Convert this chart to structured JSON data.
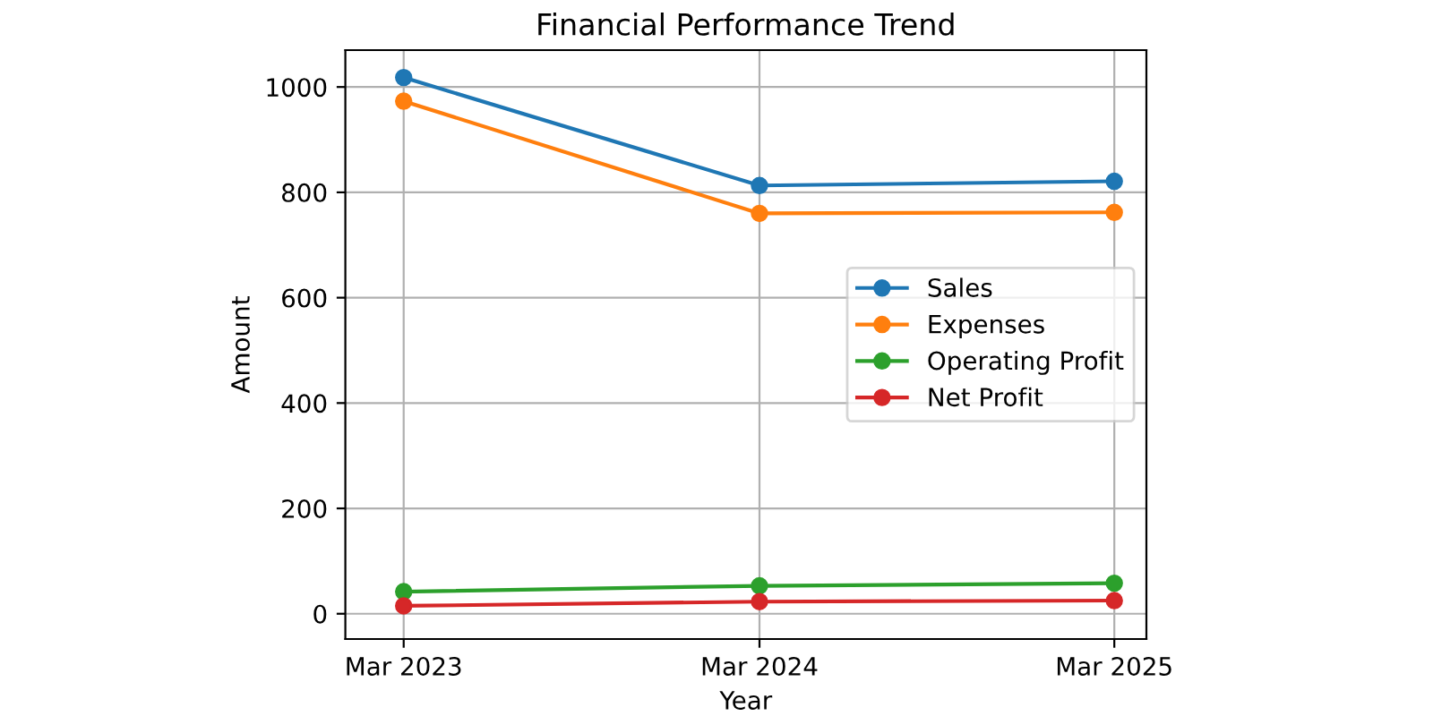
{
  "chart_data": {
    "type": "line",
    "title": "Financial Performance Trend",
    "xlabel": "Year",
    "ylabel": "Amount",
    "x": [
      "2023-03",
      "2024-03",
      "2025-03"
    ],
    "series": [
      {
        "name": "Sales",
        "color": "#1f77b4",
        "values": [
          1018,
          813,
          821
        ]
      },
      {
        "name": "Expenses",
        "color": "#ff7f0e",
        "values": [
          973,
          760,
          762
        ]
      },
      {
        "name": "Operating Profit",
        "color": "#2ca02c",
        "values": [
          42,
          53,
          58
        ]
      },
      {
        "name": "Net Profit",
        "color": "#d62728",
        "values": [
          15,
          23,
          25
        ]
      }
    ],
    "xlim": [
      "2022-12-31",
      "2025-04-03"
    ],
    "xticks": [
      {
        "value": "2023-03",
        "label": "Mar 2023"
      },
      {
        "value": "2024-03",
        "label": "Mar 2024"
      },
      {
        "value": "2025-03",
        "label": "Mar 2025"
      }
    ],
    "ylim": [
      -48,
      1070
    ],
    "yticks": [
      0,
      200,
      400,
      600,
      800,
      1000
    ],
    "grid": true,
    "legend": "right",
    "marker": "circle",
    "line_style": "solid"
  }
}
